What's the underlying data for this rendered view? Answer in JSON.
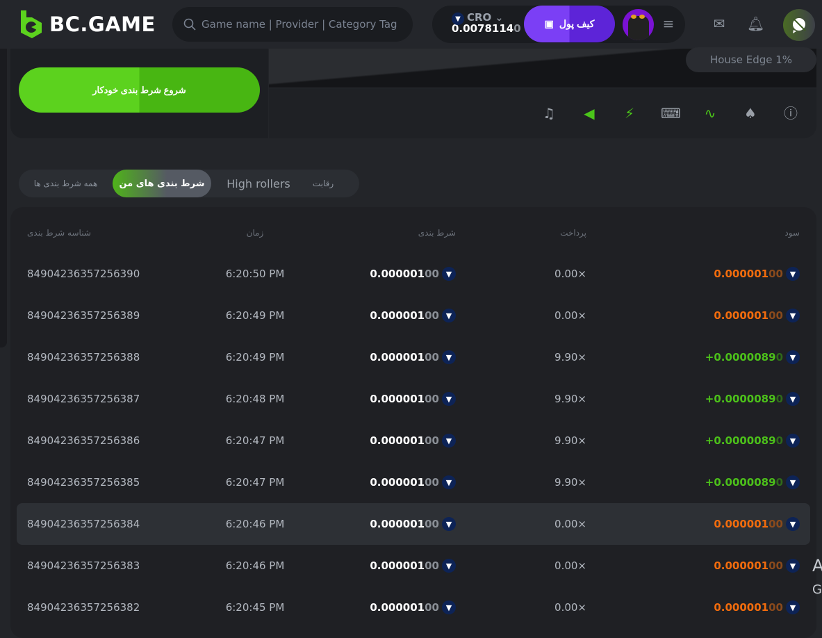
{
  "header": {
    "logo": "BC.GAME",
    "search_placeholder": "Game name | Provider | Category Tag",
    "currency": "CRO",
    "balance_main": "0.0078114",
    "balance_dim": "0",
    "deposit": "کیف پول"
  },
  "game": {
    "house_edge": "House Edge 1%",
    "auto_bet": "شروع شرط بندی خودکار",
    "controls": [
      "music-off-icon",
      "sound-icon",
      "lightning-icon",
      "keyboard-icon",
      "chart-icon",
      "acorn-icon",
      "help-icon"
    ]
  },
  "tabs": [
    {
      "label": "همه شرط بندی ها"
    },
    {
      "label": "شرط بندی های من",
      "active": true
    },
    {
      "label": "High rollers"
    },
    {
      "label": "رقابت"
    }
  ],
  "columns": {
    "id": "شناسه شرط بندی",
    "time": "زمان",
    "bet": "شرط بندی",
    "payout": "پرداخت",
    "profit": "سود"
  },
  "rows": [
    {
      "id": "84904236357256390",
      "time": "6:20:50 PM",
      "bet": "0.000001",
      "bet_dim": "00",
      "payout": "0.00×",
      "profit": "0.000001",
      "profit_dim": "00",
      "win": false
    },
    {
      "id": "84904236357256389",
      "time": "6:20:49 PM",
      "bet": "0.000001",
      "bet_dim": "00",
      "payout": "0.00×",
      "profit": "0.000001",
      "profit_dim": "00",
      "win": false
    },
    {
      "id": "84904236357256388",
      "time": "6:20:49 PM",
      "bet": "0.000001",
      "bet_dim": "00",
      "payout": "9.90×",
      "profit": "+0.0000089",
      "profit_dim": "0",
      "win": true
    },
    {
      "id": "84904236357256387",
      "time": "6:20:48 PM",
      "bet": "0.000001",
      "bet_dim": "00",
      "payout": "9.90×",
      "profit": "+0.0000089",
      "profit_dim": "0",
      "win": true
    },
    {
      "id": "84904236357256386",
      "time": "6:20:47 PM",
      "bet": "0.000001",
      "bet_dim": "00",
      "payout": "9.90×",
      "profit": "+0.0000089",
      "profit_dim": "0",
      "win": true
    },
    {
      "id": "84904236357256385",
      "time": "6:20:47 PM",
      "bet": "0.000001",
      "bet_dim": "00",
      "payout": "9.90×",
      "profit": "+0.0000089",
      "profit_dim": "0",
      "win": true
    },
    {
      "id": "84904236357256384",
      "time": "6:20:46 PM",
      "bet": "0.000001",
      "bet_dim": "00",
      "payout": "0.00×",
      "profit": "0.000001",
      "profit_dim": "00",
      "win": false,
      "highlighted": true
    },
    {
      "id": "84904236357256383",
      "time": "6:20:46 PM",
      "bet": "0.000001",
      "bet_dim": "00",
      "payout": "0.00×",
      "profit": "0.000001",
      "profit_dim": "00",
      "win": false
    },
    {
      "id": "84904236357256382",
      "time": "6:20:45 PM",
      "bet": "0.000001",
      "bet_dim": "00",
      "payout": "0.00×",
      "profit": "0.000001",
      "profit_dim": "00",
      "win": false
    }
  ],
  "edge_text": [
    "A",
    "G"
  ],
  "colors": {
    "accent_green": "#4cc11a",
    "loss_orange": "#f26c0d",
    "deposit_purple": "#7b3ff5"
  }
}
